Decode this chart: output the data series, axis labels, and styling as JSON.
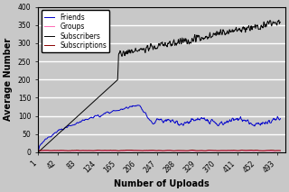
{
  "x_ticks": [
    1,
    42,
    83,
    124,
    165,
    206,
    247,
    288,
    329,
    370,
    411,
    452,
    493
  ],
  "xlabel": "Number of Uploads",
  "ylabel": "Average Number",
  "ylim": [
    0,
    400
  ],
  "xlim": [
    1,
    510
  ],
  "yticks": [
    0,
    50,
    100,
    150,
    200,
    250,
    300,
    350,
    400
  ],
  "legend": [
    "Friends",
    "Groups",
    "Subscribers",
    "Subscriptions"
  ],
  "colors": {
    "Friends": "#0000CC",
    "Groups": "#FF69B4",
    "Subscribers": "#000000",
    "Subscriptions": "#8B0000"
  },
  "figsize": [
    3.2,
    2.13
  ],
  "dpi": 100,
  "background": "#C8C8C8"
}
